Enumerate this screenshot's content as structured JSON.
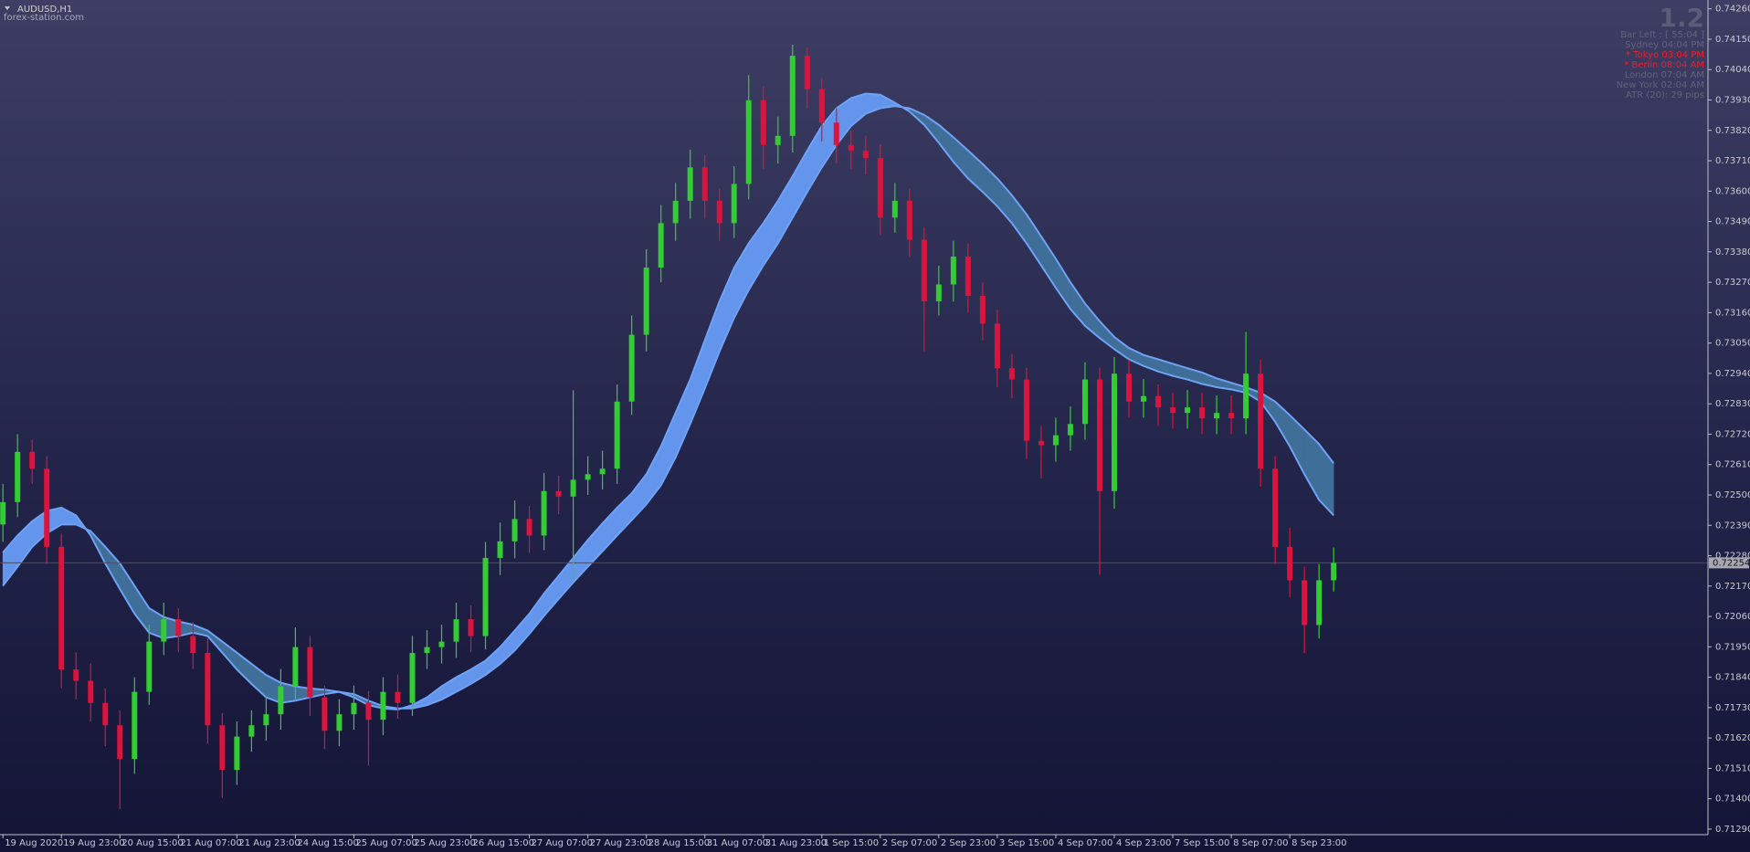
{
  "chart_data": {
    "type": "candlestick",
    "symbol": "AUDUSD,H1",
    "watermark": "forex-station.com",
    "version": "1.2",
    "info_panel": [
      {
        "text": "Bar Left : [ 55:04 ]",
        "color": "#62627e"
      },
      {
        "text": "Sydney  04:04 PM",
        "color": "#62627e"
      },
      {
        "text": "* Tokyo  03:04 PM",
        "color": "#e8202a"
      },
      {
        "text": "* Berlin  08:04 AM",
        "color": "#e8202a"
      },
      {
        "text": "London  07:04 AM",
        "color": "#62627e"
      },
      {
        "text": "New York  02:04 AM",
        "color": "#62627e"
      },
      {
        "text": "ATR (20): 29 pips",
        "color": "#62627e"
      }
    ],
    "bull_color": "#32cd32",
    "bear_color": "#dc143c",
    "grid": false,
    "current_price": 0.72254,
    "xlim": [
      -0.2,
      116.6
    ],
    "xticks": [
      {
        "value": 0,
        "label": "19 Aug 2020"
      },
      {
        "value": 4,
        "label": "19 Aug 23:00"
      },
      {
        "value": 8,
        "label": "20 Aug 15:00"
      },
      {
        "value": 12,
        "label": "21 Aug 07:00"
      },
      {
        "value": 16,
        "label": "21 Aug 23:00"
      },
      {
        "value": 20,
        "label": "24 Aug 15:00"
      },
      {
        "value": 24,
        "label": "25 Aug 07:00"
      },
      {
        "value": 28,
        "label": "25 Aug 23:00"
      },
      {
        "value": 32,
        "label": "26 Aug 15:00"
      },
      {
        "value": 36,
        "label": "27 Aug 07:00"
      },
      {
        "value": 40,
        "label": "27 Aug 23:00"
      },
      {
        "value": 44,
        "label": "28 Aug 15:00"
      },
      {
        "value": 48,
        "label": "31 Aug 07:00"
      },
      {
        "value": 52,
        "label": "31 Aug 23:00"
      },
      {
        "value": 56,
        "label": "1 Sep 15:00"
      },
      {
        "value": 60,
        "label": "2 Sep 07:00"
      },
      {
        "value": 64,
        "label": "2 Sep 23:00"
      },
      {
        "value": 68,
        "label": "3 Sep 15:00"
      },
      {
        "value": 72,
        "label": "4 Sep 07:00"
      },
      {
        "value": 76,
        "label": "4 Sep 23:00"
      },
      {
        "value": 80,
        "label": "7 Sep 15:00"
      },
      {
        "value": 84,
        "label": "8 Sep 07:00"
      },
      {
        "value": 88,
        "label": "8 Sep 23:00"
      }
    ],
    "ylim": [
      0.7127,
      0.74292
    ],
    "yticks": [
      {
        "value": 0.7426,
        "label": "0.74260"
      },
      {
        "value": 0.7415,
        "label": "0.74150"
      },
      {
        "value": 0.7404,
        "label": "0.74040"
      },
      {
        "value": 0.7393,
        "label": "0.73930"
      },
      {
        "value": 0.7382,
        "label": "0.73820"
      },
      {
        "value": 0.7371,
        "label": "0.73710"
      },
      {
        "value": 0.736,
        "label": "0.73600"
      },
      {
        "value": 0.7349,
        "label": "0.73490"
      },
      {
        "value": 0.7338,
        "label": "0.73380"
      },
      {
        "value": 0.7327,
        "label": "0.73270"
      },
      {
        "value": 0.7316,
        "label": "0.73160"
      },
      {
        "value": 0.7305,
        "label": "0.73050"
      },
      {
        "value": 0.7294,
        "label": "0.72940"
      },
      {
        "value": 0.7283,
        "label": "0.72830"
      },
      {
        "value": 0.7272,
        "label": "0.72720"
      },
      {
        "value": 0.7261,
        "label": "0.72610"
      },
      {
        "value": 0.725,
        "label": "0.72500"
      },
      {
        "value": 0.7239,
        "label": "0.72390"
      },
      {
        "value": 0.7228,
        "label": "0.72280"
      },
      {
        "value": 0.7217,
        "label": "0.72170"
      },
      {
        "value": 0.7206,
        "label": "0.72060"
      },
      {
        "value": 0.7195,
        "label": "0.71950"
      },
      {
        "value": 0.7184,
        "label": "0.71840"
      },
      {
        "value": 0.7173,
        "label": "0.71730"
      },
      {
        "value": 0.7162,
        "label": "0.71620"
      },
      {
        "value": 0.7151,
        "label": "0.71510"
      },
      {
        "value": 0.714,
        "label": "0.71400"
      },
      {
        "value": 0.7129,
        "label": "0.71290"
      }
    ],
    "open": [
      0.72393,
      0.72474,
      0.72656,
      0.72595,
      0.72312,
      0.71868,
      0.71827,
      0.71747,
      0.71666,
      0.71544,
      0.71787,
      0.71969,
      0.7205,
      0.71989,
      0.71928,
      0.71666,
      0.71504,
      0.71625,
      0.71666,
      0.71706,
      0.71807,
      0.71949,
      0.71767,
      0.71646,
      0.71706,
      0.71747,
      0.71686,
      0.71787,
      0.71747,
      0.71928,
      0.71949,
      0.71969,
      0.7205,
      0.71989,
      0.72272,
      0.72332,
      0.72413,
      0.72353,
      0.72514,
      0.72494,
      0.72555,
      0.72575,
      0.72595,
      0.72838,
      0.7308,
      0.73323,
      0.73484,
      0.73565,
      0.73686,
      0.73565,
      0.73484,
      0.73626,
      0.73929,
      0.73767,
      0.738,
      0.7409,
      0.73969,
      0.73848,
      0.73767,
      0.73747,
      0.7372,
      0.73504,
      0.73565,
      0.73424,
      0.73201,
      0.73262,
      0.73363,
      0.73221,
      0.7312,
      0.72959,
      0.72918,
      0.72696,
      0.7268,
      0.72716,
      0.72757,
      0.72918,
      0.72514,
      0.72939,
      0.72838,
      0.72858,
      0.72817,
      0.72797,
      0.72817,
      0.72777,
      0.72797,
      0.72777,
      0.72939,
      0.72595,
      0.72312,
      0.72191,
      0.72029,
      0.72191
    ],
    "high": [
      0.7254,
      0.7272,
      0.727,
      0.7264,
      0.7236,
      0.7193,
      0.7189,
      0.718,
      0.7172,
      0.7184,
      0.7203,
      0.7211,
      0.7209,
      0.7204,
      0.7198,
      0.7171,
      0.7168,
      0.7172,
      0.7177,
      0.7187,
      0.7202,
      0.7199,
      0.7181,
      0.7176,
      0.7181,
      0.7179,
      0.7184,
      0.7185,
      0.7199,
      0.7201,
      0.7203,
      0.7211,
      0.721,
      0.7233,
      0.724,
      0.7248,
      0.7246,
      0.7258,
      0.7257,
      0.72879,
      0.7264,
      0.7266,
      0.729,
      0.7315,
      0.7339,
      0.7355,
      0.7363,
      0.7375,
      0.7373,
      0.7361,
      0.7369,
      0.7402,
      0.7398,
      0.7387,
      0.7413,
      0.7412,
      0.7401,
      0.739,
      0.7382,
      0.738,
      0.7377,
      0.7363,
      0.7361,
      0.7347,
      0.7333,
      0.7342,
      0.7341,
      0.7327,
      0.7317,
      0.7301,
      0.7296,
      0.7275,
      0.7278,
      0.7282,
      0.7298,
      0.7296,
      0.73,
      0.7299,
      0.7292,
      0.729,
      0.7287,
      0.7288,
      0.7287,
      0.7286,
      0.7286,
      0.7309,
      0.7299,
      0.7264,
      0.7238,
      0.7224,
      0.7225,
      0.7231
    ],
    "low": [
      0.7233,
      0.7242,
      0.7254,
      0.7225,
      0.718,
      0.7176,
      0.7168,
      0.7159,
      0.71363,
      0.7149,
      0.7174,
      0.7192,
      0.7193,
      0.7187,
      0.716,
      0.71403,
      0.7145,
      0.7157,
      0.7161,
      0.7165,
      0.7176,
      0.717,
      0.7158,
      0.7159,
      0.7165,
      0.7152,
      0.7163,
      0.7169,
      0.717,
      0.7187,
      0.7189,
      0.7191,
      0.7193,
      0.7194,
      0.7221,
      0.7227,
      0.7229,
      0.723,
      0.7243,
      0.72191,
      0.725,
      0.7252,
      0.7254,
      0.7279,
      0.7302,
      0.7327,
      0.7342,
      0.735,
      0.735,
      0.7342,
      0.7343,
      0.7357,
      0.7368,
      0.737,
      0.7374,
      0.739,
      0.7378,
      0.737,
      0.7368,
      0.7366,
      0.7344,
      0.7345,
      0.7336,
      0.7302,
      0.7315,
      0.732,
      0.7316,
      0.7306,
      0.7289,
      0.7285,
      0.7263,
      0.7256,
      0.7262,
      0.7266,
      0.727,
      0.72211,
      0.7245,
      0.7278,
      0.7278,
      0.7275,
      0.7274,
      0.7274,
      0.7272,
      0.7272,
      0.7272,
      0.7272,
      0.7253,
      0.7225,
      0.7213,
      0.71928,
      0.7198,
      0.7215
    ],
    "close": [
      0.72474,
      0.72656,
      0.72595,
      0.72312,
      0.71868,
      0.71827,
      0.71747,
      0.71666,
      0.71544,
      0.71787,
      0.71969,
      0.7205,
      0.71989,
      0.71928,
      0.71666,
      0.71504,
      0.71625,
      0.71666,
      0.71706,
      0.71807,
      0.71949,
      0.71767,
      0.71646,
      0.71706,
      0.71747,
      0.71686,
      0.71787,
      0.71747,
      0.71928,
      0.71949,
      0.71969,
      0.7205,
      0.71989,
      0.72272,
      0.72332,
      0.72413,
      0.72353,
      0.72514,
      0.72494,
      0.72555,
      0.72575,
      0.72595,
      0.72838,
      0.7308,
      0.73323,
      0.73484,
      0.73565,
      0.73686,
      0.73565,
      0.73484,
      0.73626,
      0.73929,
      0.73767,
      0.738,
      0.7409,
      0.73969,
      0.73848,
      0.73767,
      0.73747,
      0.7372,
      0.73504,
      0.73565,
      0.73424,
      0.73201,
      0.73262,
      0.73363,
      0.73221,
      0.7312,
      0.72959,
      0.72918,
      0.72696,
      0.7268,
      0.72716,
      0.72757,
      0.72918,
      0.72514,
      0.72939,
      0.72838,
      0.72858,
      0.72817,
      0.72797,
      0.72817,
      0.72777,
      0.72797,
      0.72777,
      0.72939,
      0.72595,
      0.72312,
      0.72191,
      0.72029,
      0.72191,
      0.72254
    ],
    "fast_ma": {
      "color": "#6fa2f5",
      "values": [
        0.72292,
        0.72353,
        0.72405,
        0.72442,
        0.72454,
        0.72426,
        0.72353,
        0.72252,
        0.72159,
        0.7207,
        0.72001,
        0.71981,
        0.71989,
        0.72001,
        0.71989,
        0.71929,
        0.71868,
        0.71816,
        0.71767,
        0.71747,
        0.71755,
        0.71767,
        0.71779,
        0.71787,
        0.71767,
        0.71739,
        0.71727,
        0.71723,
        0.71739,
        0.71767,
        0.71807,
        0.7184,
        0.71868,
        0.719,
        0.71949,
        0.72009,
        0.7207,
        0.72143,
        0.72207,
        0.72272,
        0.72337,
        0.72397,
        0.72454,
        0.72506,
        0.72575,
        0.72676,
        0.72797,
        0.72918,
        0.7306,
        0.73201,
        0.73322,
        0.73411,
        0.73484,
        0.73565,
        0.73654,
        0.73747,
        0.73836,
        0.739,
        0.73937,
        0.73953,
        0.73949,
        0.7392,
        0.73888,
        0.7384,
        0.73775,
        0.73706,
        0.73646,
        0.73597,
        0.73545,
        0.73484,
        0.73411,
        0.73331,
        0.7325,
        0.73173,
        0.73112,
        0.73068,
        0.73028,
        0.72991,
        0.72967,
        0.72947,
        0.72931,
        0.72918,
        0.72902,
        0.7289,
        0.72882,
        0.7287,
        0.72838,
        0.72765,
        0.72676,
        0.72575,
        0.72482,
        0.72426
      ]
    },
    "slow_ma": {
      "color": "#6fa2f5",
      "values": [
        0.72171,
        0.7224,
        0.72312,
        0.72361,
        0.72393,
        0.72393,
        0.72369,
        0.72312,
        0.72252,
        0.72171,
        0.7209,
        0.72058,
        0.72042,
        0.7203,
        0.72009,
        0.71969,
        0.71929,
        0.71888,
        0.71848,
        0.7182,
        0.71807,
        0.71799,
        0.71795,
        0.71787,
        0.71779,
        0.71755,
        0.71735,
        0.71727,
        0.71727,
        0.71739,
        0.71759,
        0.71787,
        0.71816,
        0.71848,
        0.71888,
        0.71937,
        0.71997,
        0.72062,
        0.72123,
        0.72183,
        0.7224,
        0.72296,
        0.72353,
        0.72409,
        0.72466,
        0.72535,
        0.72636,
        0.72757,
        0.72886,
        0.73019,
        0.73141,
        0.73242,
        0.73331,
        0.73411,
        0.73504,
        0.73597,
        0.73686,
        0.73767,
        0.73836,
        0.7388,
        0.739,
        0.73908,
        0.739,
        0.73876,
        0.7384,
        0.73795,
        0.73747,
        0.73698,
        0.73646,
        0.73585,
        0.73516,
        0.73436,
        0.73355,
        0.7327,
        0.73193,
        0.73129,
        0.73072,
        0.73032,
        0.73007,
        0.72991,
        0.72975,
        0.72959,
        0.72943,
        0.72922,
        0.72906,
        0.7289,
        0.7287,
        0.72838,
        0.72789,
        0.72737,
        0.72684,
        0.72615
      ]
    },
    "ribbon_up_color": "#6495ed",
    "ribbon_down_color": "#3f6e99"
  }
}
